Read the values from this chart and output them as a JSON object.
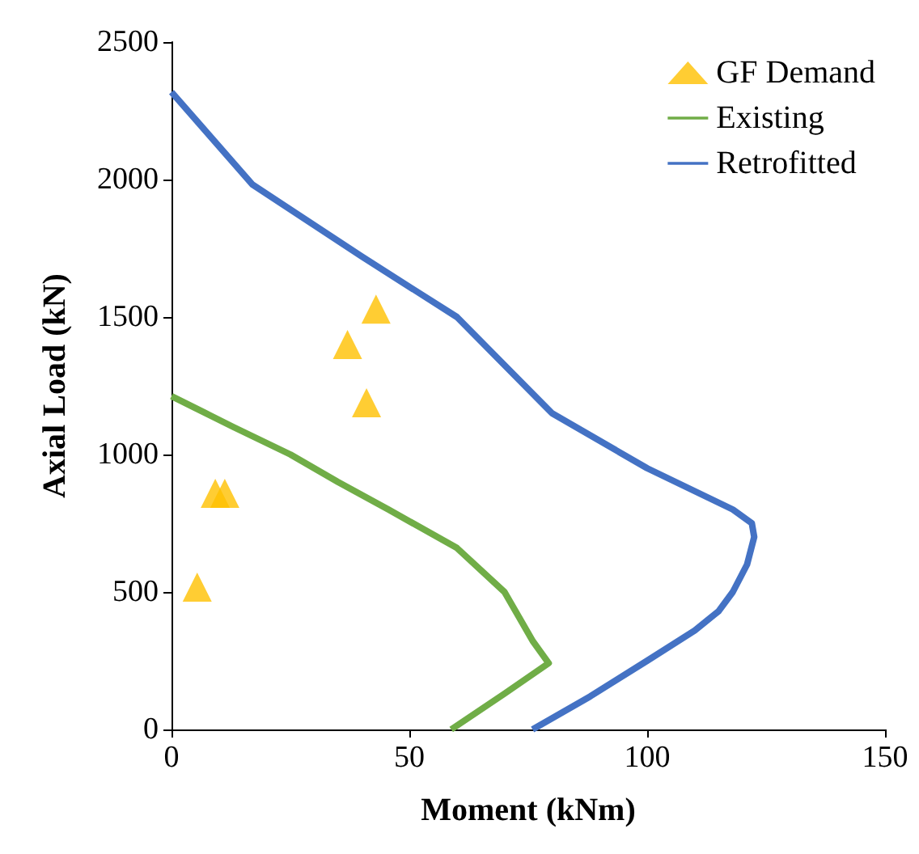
{
  "chart_data": {
    "type": "line",
    "xlabel": "Moment (kNm)",
    "ylabel": "Axial Load (kN)",
    "xlim": [
      0,
      150
    ],
    "xticks": [
      0,
      50,
      100,
      150
    ],
    "ylim": [
      0,
      2500
    ],
    "yticks": [
      0,
      500,
      1000,
      1500,
      2000,
      2500
    ],
    "grid": false,
    "legend": "top right",
    "series": [
      {
        "name": "GF Demand",
        "type": "scatter",
        "marker": "triangle",
        "color": "#ffc000",
        "x": [
          5.4,
          9.2,
          11.2,
          37,
          41,
          43
        ],
        "values": [
          518,
          859,
          859,
          1400,
          1188,
          1529
        ]
      },
      {
        "name": "Existing",
        "marker": "none",
        "color": "#70ad47",
        "x": [
          58.8,
          70,
          79.3,
          76,
          70,
          60,
          45.6,
          35,
          25,
          13,
          0
        ],
        "values": [
          0,
          130,
          241,
          320,
          500,
          660,
          800,
          900,
          1000,
          1100,
          1212
        ]
      },
      {
        "name": "Retrofitted",
        "marker": "none",
        "color": "#4472c4",
        "x": [
          75.9,
          88,
          100,
          110,
          115,
          118,
          121,
          122.5,
          122,
          118,
          100,
          80,
          60,
          40,
          17,
          0
        ],
        "values": [
          0,
          120,
          250,
          360,
          430,
          500,
          600,
          700,
          750,
          800,
          950,
          1150,
          1500,
          1720,
          1982,
          2318
        ]
      }
    ]
  }
}
